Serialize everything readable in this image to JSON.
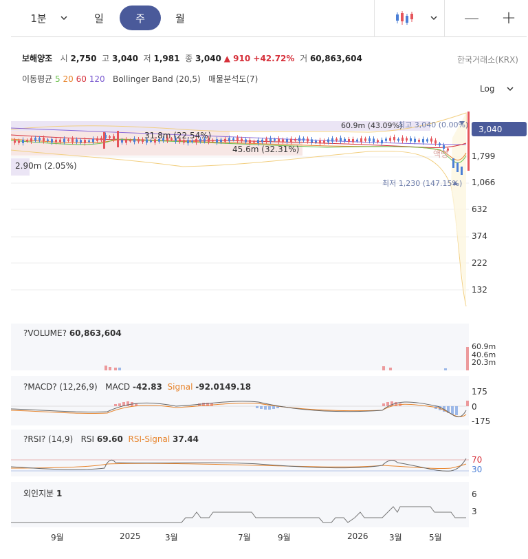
{
  "toolbar": {
    "interval_select": "1분",
    "tabs": [
      "일",
      "주",
      "월"
    ],
    "active_tab": "주",
    "zoom_out": "—",
    "zoom_in": "+"
  },
  "stock": {
    "name": "보해양조",
    "open_label": "시",
    "open": "2,750",
    "high_label": "고",
    "high": "3,040",
    "low_label": "저",
    "low": "1,981",
    "close_label": "종",
    "close": "3,040",
    "change": "▲ 910 +42.72%",
    "volume_label": "거",
    "volume": "60,863,604",
    "exchange": "한국거래소(KRX)"
  },
  "indicators": {
    "ma_label": "이동평균",
    "ma_periods": [
      "5",
      "20",
      "60",
      "120"
    ],
    "ma_colors": [
      "#6abf4b",
      "#e7842c",
      "#d6303a",
      "#7a5ad0"
    ],
    "bollinger": "Bollinger Band (20,5)",
    "volume_profile": "매물분석도(7)",
    "scale": "Log"
  },
  "main_chart": {
    "y_ticks": [
      "1,799",
      "1,066",
      "632",
      "374",
      "222",
      "132"
    ],
    "last_price_tag": "3,040",
    "high_annotation": "최고 3,040 (0.00%)",
    "low_annotation": "최저 1,230 (147.15%)",
    "profile_labels": [
      "60.9m (43.09%)",
      "31.8m (22.54%)",
      "45.6m (32.31%)",
      "2.90m (2.05%)"
    ],
    "watermark": "액병",
    "up_color": "#e5555b",
    "down_color": "#4b7fd6"
  },
  "volume_panel": {
    "title": "?VOLUME?",
    "value": "60,863,604",
    "y_ticks": [
      "60.9m",
      "40.6m",
      "20.3m"
    ]
  },
  "macd_panel": {
    "title": "?MACD? (12,26,9)",
    "macd_label": "MACD",
    "macd_value": "-42.83",
    "signal_label": "Signal",
    "signal_value": "-92.0149.18",
    "y_ticks": [
      "175",
      "0",
      "-175"
    ]
  },
  "rsi_panel": {
    "title": "?RSI? (14,9)",
    "rsi_label": "RSI",
    "rsi_value": "69.60",
    "signal_label": "RSI-Signal",
    "signal_value": "37.44",
    "y_ticks": [
      "70",
      "30"
    ]
  },
  "foreign_panel": {
    "title": "외인지분",
    "value": "1",
    "y_ticks": [
      "6",
      "3"
    ]
  },
  "x_axis": [
    "9월",
    "2025",
    "3월",
    "7월",
    "9월",
    "2026",
    "3월",
    "5월"
  ]
}
